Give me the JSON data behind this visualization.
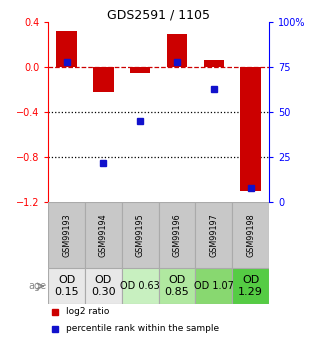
{
  "title": "GDS2591 / 1105",
  "samples": [
    "GSM99193",
    "GSM99194",
    "GSM99195",
    "GSM99196",
    "GSM99197",
    "GSM99198"
  ],
  "log2_ratio": [
    0.32,
    -0.22,
    -0.05,
    0.3,
    0.07,
    -1.1
  ],
  "percentile_rank": [
    78,
    22,
    45,
    78,
    63,
    8
  ],
  "ylim_left": [
    -1.2,
    0.4
  ],
  "ylim_right": [
    0,
    100
  ],
  "yticks_left": [
    -1.2,
    -0.8,
    -0.4,
    0.0,
    0.4
  ],
  "yticks_right": [
    0,
    25,
    50,
    75,
    100
  ],
  "ytick_labels_right": [
    "0",
    "25",
    "50",
    "75",
    "100%"
  ],
  "hlines": [
    -0.8,
    -0.4
  ],
  "bar_color": "#cc0000",
  "dot_color": "#1111cc",
  "dashed_line_color": "#cc0000",
  "age_labels": [
    "OD\n0.15",
    "OD\n0.30",
    "OD 0.63",
    "OD\n0.85",
    "OD 1.07",
    "OD\n1.29"
  ],
  "age_bg_colors": [
    "#e8e8e8",
    "#e8e8e8",
    "#c8f0c0",
    "#b0e8a0",
    "#88d870",
    "#55cc44"
  ],
  "age_font_sizes": [
    8,
    8,
    7,
    8,
    7,
    8
  ],
  "sample_bg_color": "#c8c8c8",
  "border_color": "#aaaaaa",
  "legend_red_label": "log2 ratio",
  "legend_blue_label": "percentile rank within the sample"
}
